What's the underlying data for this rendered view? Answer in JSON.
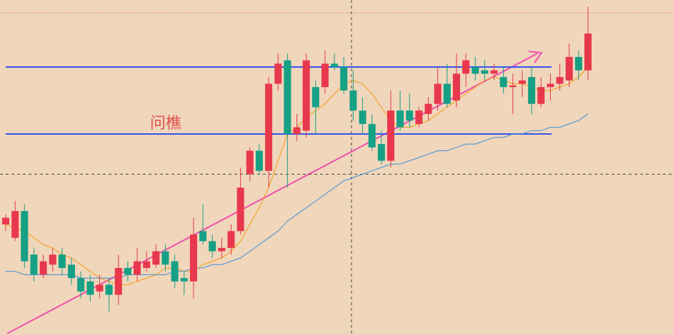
{
  "chart_data": {
    "type": "candlestick",
    "annotation": "问樵",
    "ylim": [
      0,
      100
    ],
    "up_color": "#e8384c",
    "down_color": "#16a085",
    "candles": [
      [
        33,
        36,
        31,
        35
      ],
      [
        29,
        40,
        28,
        37
      ],
      [
        37,
        39,
        20,
        22
      ],
      [
        24,
        26,
        16,
        18
      ],
      [
        18,
        24,
        17,
        22
      ],
      [
        21,
        26,
        19,
        24
      ],
      [
        24,
        26,
        18,
        20
      ],
      [
        21,
        23,
        15,
        17
      ],
      [
        17,
        19,
        11,
        13
      ],
      [
        16,
        18,
        10,
        12
      ],
      [
        13,
        18,
        11,
        15
      ],
      [
        15,
        17,
        7,
        12
      ],
      [
        12,
        24,
        9,
        20
      ],
      [
        20,
        22,
        16,
        18
      ],
      [
        18,
        26,
        16,
        22
      ],
      [
        20,
        25,
        19,
        22
      ],
      [
        21,
        27,
        20,
        25
      ],
      [
        25,
        27,
        19,
        21
      ],
      [
        22,
        24,
        14,
        16
      ],
      [
        17,
        19,
        12,
        16
      ],
      [
        16,
        35,
        11,
        30
      ],
      [
        31,
        39,
        27,
        28
      ],
      [
        28,
        30,
        23,
        25
      ],
      [
        25,
        29,
        23,
        26
      ],
      [
        26,
        33,
        24,
        31
      ],
      [
        31,
        50,
        30,
        44
      ],
      [
        48,
        56,
        46,
        55
      ],
      [
        55,
        57,
        48,
        49
      ],
      [
        49,
        77,
        44,
        75
      ],
      [
        75,
        84,
        73,
        81
      ],
      [
        82,
        84,
        44,
        60
      ],
      [
        60,
        66,
        58,
        62
      ],
      [
        61,
        84,
        59,
        82
      ],
      [
        74,
        76,
        60,
        68
      ],
      [
        74,
        85,
        72,
        81
      ],
      [
        81,
        84,
        79,
        80
      ],
      [
        80,
        83,
        72,
        73
      ],
      [
        73,
        79,
        64,
        67
      ],
      [
        67,
        71,
        60,
        63
      ],
      [
        63,
        66,
        55,
        56
      ],
      [
        57,
        61,
        51,
        52
      ],
      [
        52,
        73,
        50,
        67
      ],
      [
        67,
        73,
        61,
        62
      ],
      [
        67,
        72,
        62,
        64
      ],
      [
        63,
        68,
        62,
        67
      ],
      [
        66,
        71,
        64,
        69
      ],
      [
        69,
        80,
        67,
        75
      ],
      [
        75,
        81,
        68,
        69
      ],
      [
        70,
        84,
        68,
        78
      ],
      [
        78,
        84,
        74,
        82
      ],
      [
        80,
        83,
        76,
        78
      ],
      [
        79,
        82,
        76,
        78
      ],
      [
        78,
        81,
        76,
        79
      ],
      [
        77,
        80,
        72,
        74
      ],
      [
        74,
        78,
        66,
        74.5
      ],
      [
        75,
        79,
        71,
        76
      ],
      [
        77,
        80,
        66,
        69
      ],
      [
        69,
        77,
        68,
        74
      ],
      [
        74,
        78,
        70,
        75
      ],
      [
        75,
        81,
        73,
        77
      ],
      [
        76,
        87,
        74,
        83
      ],
      [
        83,
        85,
        76,
        79
      ],
      [
        79,
        98,
        76,
        90
      ]
    ],
    "series": [
      {
        "color": "#f39c12",
        "values": [
          33,
          32,
          31,
          29,
          27,
          26,
          24,
          23,
          21,
          19,
          17,
          16,
          15,
          15,
          16,
          17,
          18,
          20,
          20,
          19,
          19,
          21,
          22,
          23,
          25,
          28,
          33,
          38,
          44,
          52,
          60,
          62,
          65,
          67,
          69,
          72,
          75,
          76,
          75,
          72,
          68,
          64,
          62,
          62,
          63,
          64,
          66,
          68,
          70,
          72,
          74,
          76,
          77,
          76,
          75,
          75,
          74,
          73,
          73,
          74,
          75,
          77,
          80
        ]
      },
      {
        "color": "#3b8fd9",
        "values": [
          19,
          19,
          18,
          18,
          18,
          18,
          18,
          18,
          17,
          17,
          17,
          17,
          17,
          18,
          18,
          18,
          18,
          18,
          19,
          19,
          20,
          20,
          21,
          21,
          22,
          23,
          25,
          27,
          29,
          31,
          34,
          36,
          38,
          40,
          42,
          44,
          46,
          47,
          48,
          49,
          50,
          51,
          51,
          52,
          53,
          54,
          55,
          55,
          56,
          57,
          57,
          58,
          59,
          59,
          60,
          60,
          61,
          61,
          62,
          62,
          63,
          64,
          66
        ]
      }
    ],
    "levels": [
      80,
      60
    ],
    "level_color": "#3355ee",
    "crosshair_y": 48
  }
}
